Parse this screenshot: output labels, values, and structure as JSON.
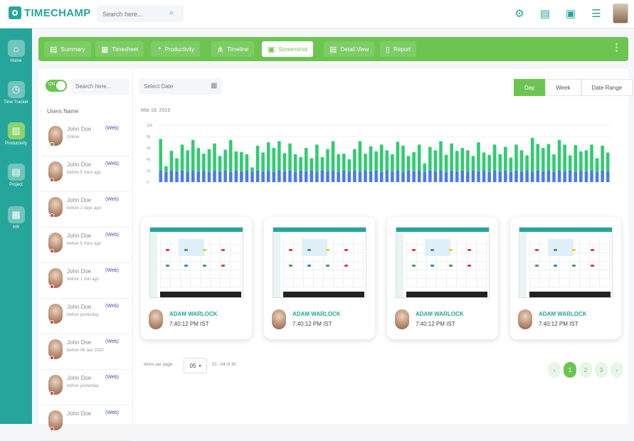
{
  "app": {
    "logo_text": "TIMECHAMP",
    "search_placeholder": "Search here..."
  },
  "top_icons": [
    {
      "name": "gear-icon",
      "glyph": "⚙"
    },
    {
      "name": "document-icon",
      "glyph": "▤"
    },
    {
      "name": "briefcase-icon",
      "glyph": "▣"
    },
    {
      "name": "sliders-icon",
      "glyph": "☰"
    }
  ],
  "sidebar": {
    "items": [
      {
        "label": "Home",
        "glyph": "⌂",
        "top": 16
      },
      {
        "label": "Time Tracker",
        "glyph": "◷",
        "top": 74
      },
      {
        "label": "Productivity",
        "glyph": "▥",
        "top": 132,
        "active": true
      },
      {
        "label": "Project",
        "glyph": "▤",
        "top": 190
      },
      {
        "label": "HR",
        "glyph": "▦",
        "top": 250
      }
    ]
  },
  "tabs": [
    {
      "label": "Summary",
      "glyph": "▤",
      "left": 8
    },
    {
      "label": "Timesheet",
      "glyph": "▦",
      "left": 80
    },
    {
      "label": "Productivity",
      "glyph": "◔",
      "left": 158
    },
    {
      "label": "Timeline",
      "glyph": "⋔",
      "left": 243
    },
    {
      "label": "Screenshot",
      "glyph": "▣",
      "left": 314,
      "active": true
    },
    {
      "label": "Detail View",
      "glyph": "▤",
      "left": 401
    },
    {
      "label": "Report",
      "glyph": "▯",
      "left": 480
    }
  ],
  "users_panel": {
    "toggle_label": "ON",
    "search_placeholder": "Search here...",
    "header": "Users Name",
    "users": [
      {
        "name": "John Doe",
        "tag": "(Web)",
        "status": "Online",
        "online": true
      },
      {
        "name": "John Doe",
        "tag": "(Web)",
        "status": "before 5 mins ago",
        "online": false
      },
      {
        "name": "John Doe",
        "tag": "(Web)",
        "status": "before 2 days ago",
        "online": false
      },
      {
        "name": "John Doe",
        "tag": "(Web)",
        "status": "before 5 mins ago",
        "online": false
      },
      {
        "name": "John Doe",
        "tag": "(Web)",
        "status": "before 1 min ago",
        "online": false
      },
      {
        "name": "John Doe",
        "tag": "(Web)",
        "status": "before yesterday",
        "online": false
      },
      {
        "name": "John Doe",
        "tag": "(Web)",
        "status": "before 06 Jan 2020",
        "online": false
      },
      {
        "name": "John Doe",
        "tag": "(Web)",
        "status": "before yesterday",
        "online": false
      },
      {
        "name": "John Doe",
        "tag": "(Web)",
        "status": "",
        "online": false
      }
    ]
  },
  "filters": {
    "date_placeholder": "Select Date",
    "ranges": [
      {
        "label": "Day",
        "active": true
      },
      {
        "label": "Week",
        "active": false
      },
      {
        "label": "Date Range",
        "active": false
      }
    ]
  },
  "chart_data": {
    "type": "bar",
    "title": "",
    "date_label": "Mar 19, 2019",
    "ytick_labels": [
      "100",
      "80",
      "60",
      "40",
      "20",
      "0"
    ],
    "ylim": [
      0,
      100
    ],
    "colors": {
      "base": "#4a7be8",
      "top": "#2ecc71"
    },
    "series": [
      {
        "values": [
          20,
          18,
          20,
          19,
          20,
          18,
          20,
          19,
          20,
          18,
          20,
          19,
          20,
          18,
          20,
          19,
          20,
          18,
          20,
          19,
          20,
          18,
          20,
          19,
          20,
          18,
          20,
          19,
          20,
          18,
          20,
          19,
          20,
          18,
          20,
          19,
          20,
          18,
          20,
          19,
          20,
          18,
          20,
          19,
          20,
          18,
          20,
          19,
          20,
          18,
          20,
          19,
          20,
          18,
          20,
          19,
          20,
          18,
          20,
          19,
          20,
          18,
          20,
          19,
          20,
          18,
          20,
          19,
          20,
          18,
          20,
          19,
          20,
          18,
          20,
          19,
          20,
          18,
          20,
          19,
          20,
          18,
          20,
          19
        ]
      },
      {
        "values": [
          76,
          28,
          55,
          42,
          66,
          56,
          74,
          60,
          50,
          58,
          68,
          46,
          57,
          74,
          54,
          53,
          49,
          26,
          64,
          52,
          70,
          60,
          72,
          51,
          68,
          49,
          44,
          60,
          42,
          66,
          44,
          58,
          72,
          49,
          50,
          40,
          58,
          72,
          50,
          63,
          54,
          66,
          56,
          49,
          71,
          64,
          46,
          53,
          66,
          33,
          62,
          56,
          72,
          48,
          68,
          55,
          60,
          56,
          46,
          70,
          52,
          48,
          66,
          49,
          62,
          43,
          66,
          56,
          47,
          78,
          67,
          60,
          67,
          49,
          74,
          66,
          47,
          65,
          54,
          56,
          66,
          42,
          64,
          52
        ]
      }
    ]
  },
  "screenshots": [
    {
      "user": "ADAM WARLOCK",
      "time": "7:40:12 PM IST"
    },
    {
      "user": "ADAM WARLOCK",
      "time": "7:40:12 PM IST"
    },
    {
      "user": "ADAM WARLOCK",
      "time": "7:40:12 PM IST"
    },
    {
      "user": "ADAM WARLOCK",
      "time": "7:40:12 PM IST"
    }
  ],
  "pagination": {
    "per_page_label": "Items per page:",
    "per_page_value": "05",
    "range_text": "01 - 04 of 30",
    "pages": [
      "‹",
      "1",
      "2",
      "3",
      "›"
    ],
    "active_page": "1"
  }
}
